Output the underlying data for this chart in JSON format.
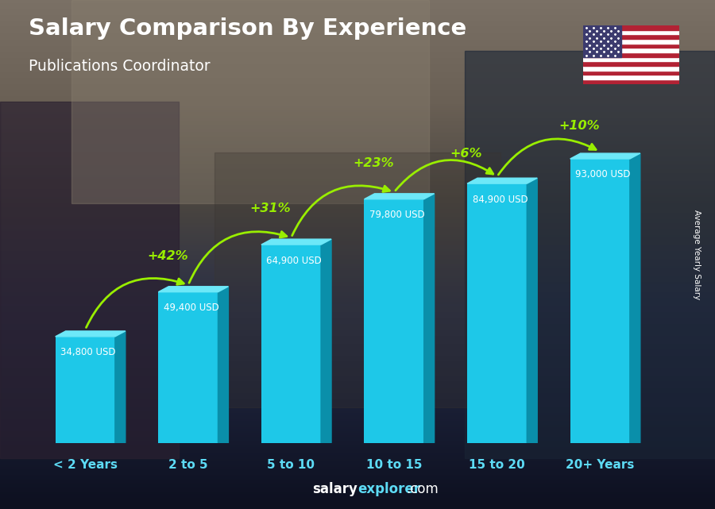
{
  "title": "Salary Comparison By Experience",
  "subtitle": "Publications Coordinator",
  "categories": [
    "< 2 Years",
    "2 to 5",
    "5 to 10",
    "10 to 15",
    "15 to 20",
    "20+ Years"
  ],
  "cat_parts": [
    [
      "< 2 ",
      "Years"
    ],
    [
      "2 ",
      "to ",
      "5"
    ],
    [
      "5 ",
      "to ",
      "10"
    ],
    [
      "10 ",
      "to ",
      "15"
    ],
    [
      "15 ",
      "to ",
      "20"
    ],
    [
      "20+ ",
      "Years"
    ]
  ],
  "values": [
    34800,
    49400,
    64900,
    79800,
    84900,
    93000
  ],
  "labels": [
    "34,800 USD",
    "49,400 USD",
    "64,900 USD",
    "79,800 USD",
    "84,900 USD",
    "93,000 USD"
  ],
  "pct_changes": [
    "+42%",
    "+31%",
    "+23%",
    "+6%",
    "+10%"
  ],
  "bar_color_face": "#1EC8E8",
  "bar_color_dark": "#0A8FAA",
  "bar_color_top": "#6DE8F8",
  "bg_top": "#7a6a5a",
  "bg_bottom": "#1a1a2a",
  "title_color": "#FFFFFF",
  "subtitle_color": "#FFFFFF",
  "label_color": "#FFFFFF",
  "pct_color": "#99EE00",
  "arrow_color": "#99EE00",
  "xlabel_color": "#5DDBF5",
  "footer_salary": "salary",
  "footer_explorer": "explorer",
  "footer_com": ".com",
  "ylabel_text": "Average Yearly Salary",
  "ylim": [
    0,
    115000
  ],
  "figsize": [
    9.0,
    6.41
  ],
  "dpi": 100
}
